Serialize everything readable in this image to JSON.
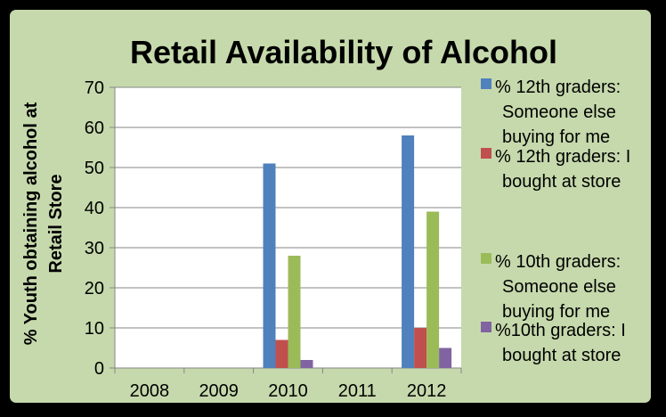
{
  "chart_data": {
    "type": "bar",
    "title": "Retail Availability of Alcohol",
    "xlabel": "",
    "ylabel_lines": [
      "% Youth obtaining alcohol at",
      "Retail Store"
    ],
    "categories": [
      "2008",
      "2009",
      "2010",
      "2011",
      "2012"
    ],
    "ylim": [
      0,
      70
    ],
    "yticks": [
      0,
      10,
      20,
      30,
      40,
      50,
      60,
      70
    ],
    "grid": true,
    "legend_position": "right",
    "series": [
      {
        "name": "% 12th graders: Someone else buying for me",
        "legend_lines": [
          " % 12th graders:",
          "Someone else",
          "buying for me"
        ],
        "color": "#4F81BD",
        "values": [
          null,
          null,
          51,
          null,
          58
        ]
      },
      {
        "name": "% 12th graders: I bought at store",
        "legend_lines": [
          "% 12th graders: I",
          "bought at store"
        ],
        "color": "#C0504D",
        "values": [
          null,
          null,
          7,
          null,
          10
        ]
      },
      {
        "name": "% 10th graders: Someone else buying for me",
        "legend_lines": [
          "% 10th graders:",
          "Someone else",
          "buying for me"
        ],
        "color": "#9BBB59",
        "values": [
          null,
          null,
          28,
          null,
          39
        ]
      },
      {
        "name": "%10th graders: I bought at store",
        "legend_lines": [
          "%10th graders: I",
          "bought at store"
        ],
        "color": "#8064A2",
        "values": [
          null,
          null,
          2,
          null,
          5
        ]
      }
    ]
  }
}
